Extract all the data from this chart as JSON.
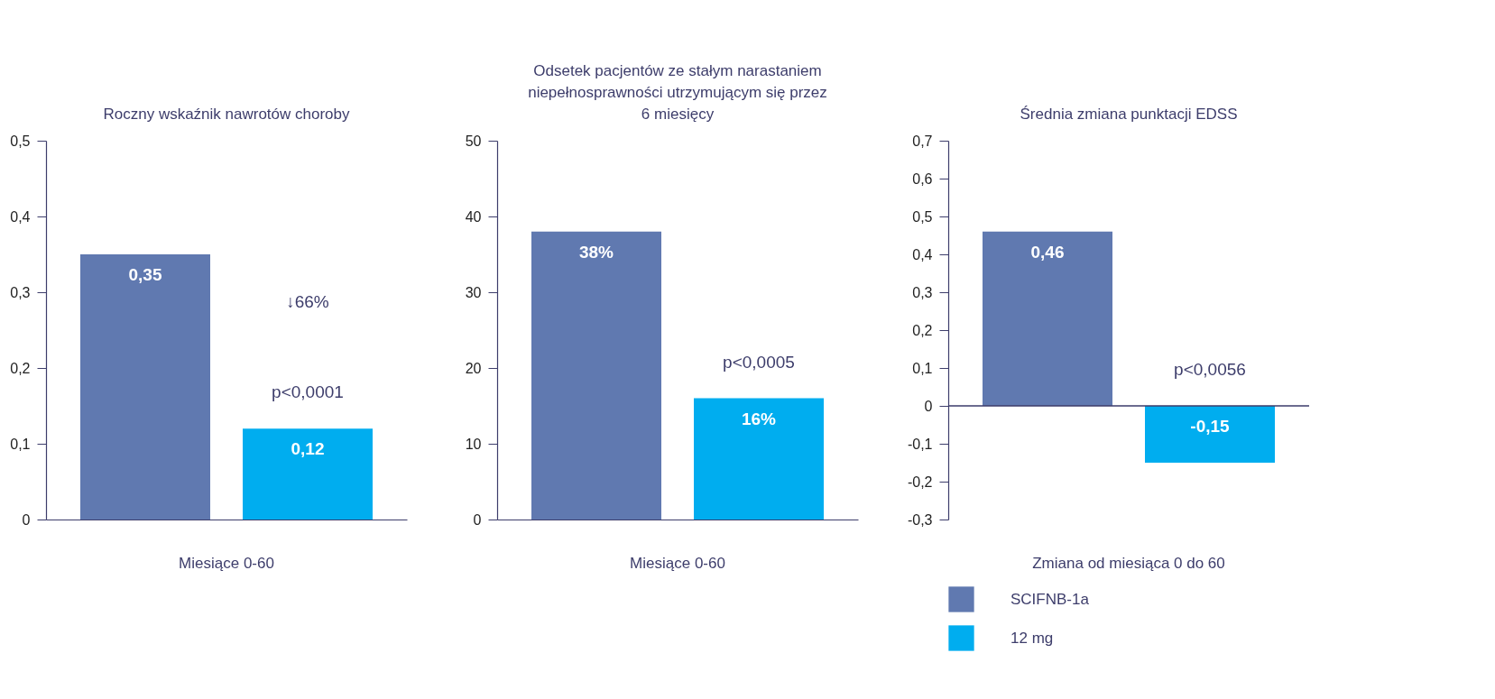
{
  "chart_data": [
    {
      "type": "bar",
      "title": "Roczny wskaźnik nawrotów choroby",
      "categories": [
        "Miesiące 0-60"
      ],
      "series": [
        {
          "color": "#6079b0",
          "values": [
            0.35
          ],
          "value_labels": [
            "0,35"
          ]
        },
        {
          "color": "#00adef",
          "values": [
            0.12
          ],
          "value_labels": [
            "0,12"
          ]
        }
      ],
      "ylim": [
        0,
        0.5
      ],
      "yticks": [
        0,
        {
          "value": 0.1,
          "label": "0,1"
        },
        {
          "value": 0.2,
          "label": "0,2"
        },
        {
          "value": 0.3,
          "label": "0,3"
        },
        {
          "value": 0.4,
          "label": "0,4"
        },
        {
          "value": 0.5,
          "label": "0,5"
        }
      ],
      "annotations": [
        "↓66%",
        "p<0,0001"
      ]
    },
    {
      "type": "bar",
      "title": "Odsetek pacjentów ze stałym narastaniem niepełnosprawności utrzymującym się przez 6 miesięcy",
      "categories": [
        "Miesiące 0-60"
      ],
      "series": [
        {
          "color": "#6079b0",
          "values": [
            38
          ],
          "value_labels": [
            "38%"
          ]
        },
        {
          "color": "#00adef",
          "values": [
            16
          ],
          "value_labels": [
            "16%"
          ]
        }
      ],
      "ylim": [
        0,
        50
      ],
      "yticks": [
        0,
        10,
        20,
        30,
        40,
        50
      ],
      "annotations": [
        "p<0,0005"
      ]
    },
    {
      "type": "bar",
      "title": "Średnia zmiana punktacji EDSS",
      "categories": [
        "Zmiana od miesiąca 0 do 60"
      ],
      "series": [
        {
          "name": "SCIFNB-1a",
          "color": "#6079b0",
          "values": [
            0.46
          ],
          "value_labels": [
            "0,46"
          ]
        },
        {
          "name": "12 mg",
          "color": "#00adef",
          "values": [
            -0.15
          ],
          "value_labels": [
            "-0,15"
          ]
        }
      ],
      "ylim": [
        -0.3,
        0.7
      ],
      "yticks": [
        {
          "value": -0.3,
          "label": "-0,3"
        },
        {
          "value": -0.2,
          "label": "-0,2"
        },
        {
          "value": -0.1,
          "label": "-0,1"
        },
        0,
        {
          "value": 0.1,
          "label": "0,1"
        },
        {
          "value": 0.2,
          "label": "0,2"
        },
        {
          "value": 0.3,
          "label": "0,3"
        },
        {
          "value": 0.4,
          "label": "0,4"
        },
        {
          "value": 0.5,
          "label": "0,5"
        },
        {
          "value": 0.6,
          "label": "0,6"
        },
        {
          "value": 0.7,
          "label": "0,7"
        }
      ],
      "annotations": [
        "p<0,0056"
      ],
      "legend": "bottom"
    }
  ]
}
